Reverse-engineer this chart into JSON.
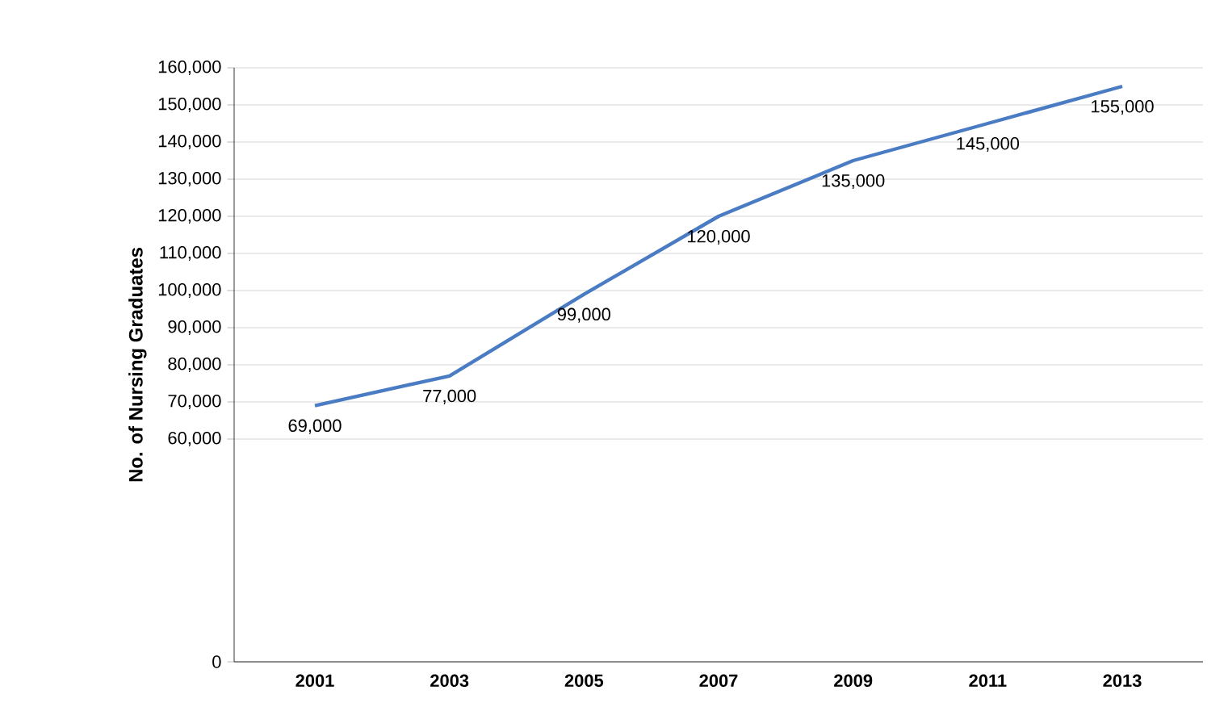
{
  "chart_data": {
    "type": "line",
    "ylabel": "No. of Nursing Graduates",
    "categories": [
      "2001",
      "2003",
      "2005",
      "2007",
      "2009",
      "2011",
      "2013"
    ],
    "series": [
      {
        "color": "#4a7cc4",
        "values": [
          69000,
          77000,
          99000,
          120000,
          135000,
          145000,
          155000
        ],
        "value_labels": [
          "69,000",
          "77,000",
          "99,000",
          "120,000",
          "135,000",
          "145,000",
          "155,000"
        ]
      }
    ],
    "ylim": [
      0,
      160000
    ],
    "yticks": [
      {
        "value": 0,
        "label": "0"
      },
      {
        "value": 60000,
        "label": "60,000"
      },
      {
        "value": 70000,
        "label": "70,000"
      },
      {
        "value": 80000,
        "label": "80,000"
      },
      {
        "value": 90000,
        "label": "90,000"
      },
      {
        "value": 100000,
        "label": "100,000"
      },
      {
        "value": 110000,
        "label": "110,000"
      },
      {
        "value": 120000,
        "label": "120,000"
      },
      {
        "value": 130000,
        "label": "130,000"
      },
      {
        "value": 140000,
        "label": "140,000"
      },
      {
        "value": 150000,
        "label": "150,000"
      },
      {
        "value": 160000,
        "label": "160,000"
      }
    ],
    "grid": "y",
    "marker": "none",
    "line_style": "solid"
  }
}
